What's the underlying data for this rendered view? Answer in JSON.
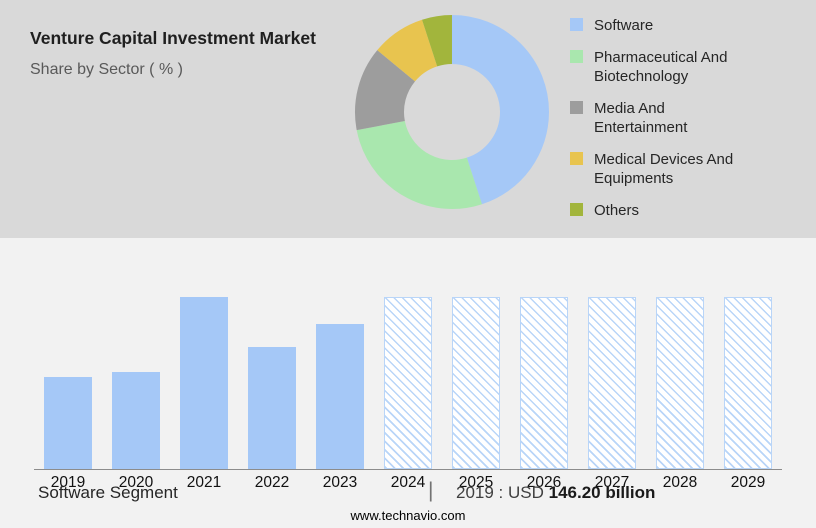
{
  "page": {
    "background": "#f2f2f2",
    "panel_background": "#d9d9d9"
  },
  "header": {
    "title": "Venture Capital Investment Market",
    "subtitle": "Share by Sector ( % )"
  },
  "chart_data": [
    {
      "type": "pie",
      "donut": true,
      "title": "Share by Sector ( % )",
      "legend_position": "right",
      "labels": [
        "Software",
        "Pharmaceutical And Biotechnology",
        "Media And Entertainment",
        "Medical Devices And Equipments",
        "Others"
      ],
      "values": [
        45,
        27,
        14,
        9,
        5
      ],
      "colors": [
        "#a5c8f7",
        "#a9e7ae",
        "#9d9d9d",
        "#e8c44f",
        "#a2b53c"
      ]
    },
    {
      "type": "bar",
      "categories": [
        "2019",
        "2020",
        "2021",
        "2022",
        "2023",
        "2024",
        "2025",
        "2026",
        "2027",
        "2028",
        "2029"
      ],
      "values": [
        146.2,
        154,
        272,
        193,
        230,
        null,
        null,
        null,
        null,
        null,
        null
      ],
      "forecast_categories": [
        "2024",
        "2025",
        "2026",
        "2027",
        "2028",
        "2029"
      ],
      "ylim": [
        0,
        272
      ],
      "unit": "USD billion",
      "bar_color": "#a5c8f7",
      "hatch_color": "#b9d5f8",
      "grid": false
    }
  ],
  "caption": {
    "segment_label": "Software Segment",
    "separator": "|",
    "value_prefix": "2019 : USD",
    "value_bold": "146.20 billion"
  },
  "footer": {
    "website": "www.technavio.com"
  }
}
